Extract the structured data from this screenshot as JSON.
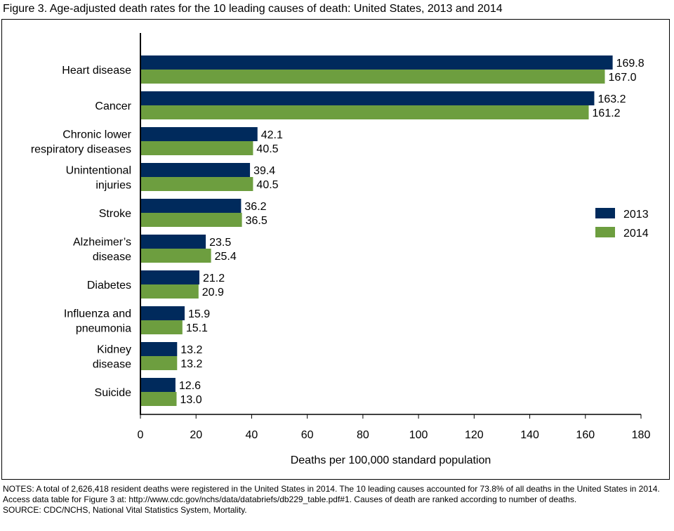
{
  "title": "Figure 3. Age-adjusted death rates for the 10 leading causes of death: United States, 2013 and 2014",
  "notes": "NOTES: A total of 2,626,418 resident deaths were registered in the United States in 2014. The 10 leading causes accounted for 73.8% of all deaths in the United States in 2014. Access data table for Figure 3 at: http://www.cdc.gov/nchs/data/databriefs/db229_table.pdf#1. Causes of death are ranked according to number of deaths.",
  "source": "SOURCE: CDC/NCHS, National Vital Statistics System, Mortality.",
  "chart_data": {
    "type": "bar",
    "orientation": "horizontal",
    "title": "Figure 3. Age-adjusted death rates for the 10 leading causes of death: United States, 2013 and 2014",
    "xlabel": "Deaths per 100,000 standard population",
    "ylabel": "",
    "xlim": [
      0,
      180
    ],
    "xticks": [
      0,
      20,
      40,
      60,
      80,
      100,
      120,
      140,
      160,
      180
    ],
    "grid": false,
    "legend": "right",
    "categories": [
      [
        "Heart disease"
      ],
      [
        "Cancer"
      ],
      [
        "Chronic lower",
        "respiratory diseases"
      ],
      [
        "Unintentional",
        "injuries"
      ],
      [
        "Stroke"
      ],
      [
        "Alzheimer’s",
        "disease"
      ],
      [
        "Diabetes"
      ],
      [
        "Influenza and",
        "pneumonia"
      ],
      [
        "Kidney",
        "disease"
      ],
      [
        "Suicide"
      ]
    ],
    "series": [
      {
        "name": "2013",
        "color": "#002a5c",
        "values": [
          169.8,
          163.2,
          42.1,
          39.4,
          36.2,
          23.5,
          21.2,
          15.9,
          13.2,
          12.6
        ],
        "labels": [
          "169.8",
          "163.2",
          "42.1",
          "39.4",
          "36.2",
          "23.5",
          "21.2",
          "15.9",
          "13.2",
          "12.6"
        ]
      },
      {
        "name": "2014",
        "color": "#6d9e3f",
        "values": [
          167.0,
          161.2,
          40.5,
          40.5,
          36.5,
          25.4,
          20.9,
          15.1,
          13.2,
          13.0
        ],
        "labels": [
          "167.0",
          "161.2",
          "40.5",
          "40.5",
          "36.5",
          "25.4",
          "20.9",
          "15.1",
          "13.2",
          "13.0"
        ]
      }
    ]
  }
}
